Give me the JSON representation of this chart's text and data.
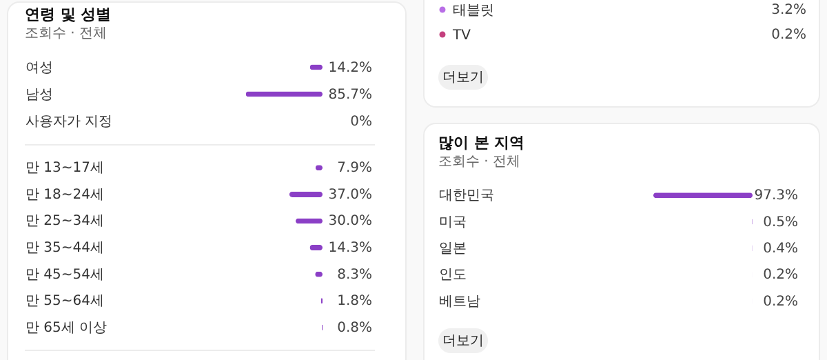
{
  "chart_data": [
    {
      "type": "bar",
      "orientation": "horizontal",
      "title": "연령 및 성별",
      "subtitle": "조회수 · 전체",
      "categories": [
        "여성",
        "남성",
        "사용자가 지정"
      ],
      "values": [
        14.2,
        85.7,
        0
      ],
      "value_labels": [
        "14.2%",
        "85.7%",
        "0%"
      ],
      "color": "#8b3fc6"
    },
    {
      "type": "bar",
      "orientation": "horizontal",
      "categories": [
        "만 13~17세",
        "만 18~24세",
        "만 25~34세",
        "만 35~44세",
        "만 45~54세",
        "만 55~64세",
        "만 65세 이상"
      ],
      "values": [
        7.9,
        37.0,
        30.0,
        14.3,
        8.3,
        1.8,
        0.8
      ],
      "value_labels": [
        "7.9%",
        "37.0%",
        "30.0%",
        "14.3%",
        "8.3%",
        "1.8%",
        "0.8%"
      ],
      "color": "#8b3fc6"
    },
    {
      "type": "other",
      "categories": [
        "태블릿",
        "TV"
      ],
      "values": [
        3.2,
        0.2
      ],
      "value_labels": [
        "3.2%",
        "0.2%"
      ],
      "colors": [
        "#b86ee6",
        "#c4407e"
      ],
      "annotations": [
        "더보기"
      ]
    },
    {
      "type": "bar",
      "orientation": "horizontal",
      "title": "많이 본 지역",
      "subtitle": "조회수 · 전체",
      "categories": [
        "대한민국",
        "미국",
        "일본",
        "인도",
        "베트남"
      ],
      "values": [
        97.3,
        0.5,
        0.4,
        0.2,
        0.2
      ],
      "value_labels": [
        "97.3%",
        "0.5%",
        "0.4%",
        "0.2%",
        "0.2%"
      ],
      "color": "#8b3fc6",
      "annotations": [
        "더보기"
      ]
    }
  ]
}
